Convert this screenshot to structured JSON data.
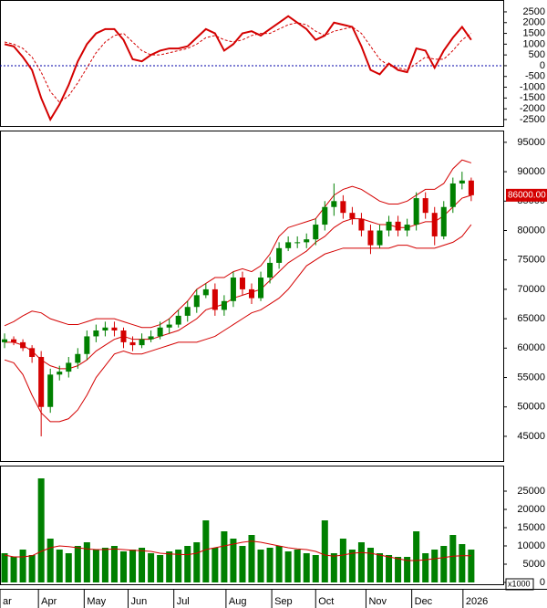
{
  "chart_data": [
    {
      "type": "line",
      "ylim": [
        -2800,
        3050
      ],
      "yticks": [
        2500,
        2000,
        1500,
        1000,
        500,
        0,
        -500,
        -1000,
        -1500,
        -2000,
        -2500
      ],
      "xlim": [
        0,
        55
      ],
      "zero_line_color": "#0000aa",
      "series": [
        {
          "color": "#d40000",
          "style": "solid",
          "values": [
            1000,
            900,
            400,
            -200,
            -1500,
            -2500,
            -1800,
            -900,
            200,
            1000,
            1500,
            1700,
            1700,
            1200,
            300,
            200,
            500,
            700,
            800,
            800,
            900,
            1300,
            1700,
            1500,
            700,
            1000,
            1500,
            1600,
            1400,
            1700,
            2000,
            2300,
            2000,
            1700,
            1200,
            1400,
            2000,
            1900,
            1800,
            900,
            -200,
            -400,
            100,
            -200,
            -300,
            800,
            700,
            -100,
            700,
            1300,
            1800,
            1200
          ]
        },
        {
          "color": "#d40000",
          "style": "dashed",
          "values": [
            1100,
            1000,
            800,
            400,
            -300,
            -1200,
            -1700,
            -1400,
            -800,
            -100,
            600,
            1100,
            1400,
            1500,
            1100,
            700,
            500,
            500,
            600,
            700,
            800,
            1000,
            1300,
            1400,
            1200,
            1100,
            1200,
            1400,
            1500,
            1500,
            1700,
            1900,
            2000,
            1900,
            1600,
            1400,
            1600,
            1700,
            1800,
            1500,
            900,
            300,
            0,
            -100,
            -200,
            100,
            400,
            300,
            300,
            700,
            1200,
            1500
          ]
        }
      ]
    },
    {
      "type": "candlestick",
      "ylim": [
        40800,
        97000
      ],
      "yticks": [
        95000,
        90000,
        85000,
        80000,
        75000,
        70000,
        65000,
        60000,
        55000,
        50000,
        45000
      ],
      "xlim": [
        0,
        55
      ],
      "up_color": "#008000",
      "down_color": "#d40000",
      "open": [
        61000,
        61500,
        61000,
        60000,
        58500,
        50000,
        55500,
        56000,
        57500,
        59000,
        62000,
        63000,
        63500,
        63000,
        61000,
        60500,
        61500,
        62000,
        63500,
        64000,
        65500,
        67000,
        69000,
        70000,
        66500,
        68000,
        72000,
        70000,
        68500,
        72000,
        74500,
        77000,
        78000,
        78000,
        78500,
        81000,
        84000,
        85000,
        83000,
        82000,
        80000,
        77500,
        80000,
        81500,
        80000,
        81000,
        85500,
        83000,
        79000,
        84000,
        88000,
        88500
      ],
      "high": [
        62500,
        62000,
        61500,
        60500,
        59500,
        56500,
        57000,
        58500,
        60000,
        63000,
        64000,
        64500,
        64500,
        63500,
        62000,
        62500,
        63000,
        64500,
        65000,
        66500,
        68000,
        70000,
        71000,
        71000,
        69000,
        73000,
        73000,
        71000,
        73000,
        75500,
        78000,
        79000,
        79000,
        79500,
        82000,
        85000,
        88000,
        86000,
        84000,
        83000,
        81000,
        81000,
        82500,
        82500,
        82000,
        86500,
        86500,
        84000,
        85000,
        89000,
        90000,
        89000
      ],
      "low": [
        60000,
        60500,
        59500,
        57500,
        45000,
        49000,
        54500,
        55000,
        56500,
        58000,
        61000,
        62000,
        62000,
        60000,
        59500,
        60000,
        61000,
        61500,
        62500,
        63500,
        64500,
        66000,
        68500,
        65500,
        65500,
        67000,
        69000,
        67500,
        68000,
        71000,
        73500,
        76500,
        77000,
        77000,
        77500,
        80000,
        82500,
        82000,
        81000,
        79000,
        76000,
        77000,
        79000,
        79000,
        79000,
        80000,
        82000,
        77500,
        78500,
        83000,
        87000,
        85000
      ],
      "close": [
        61500,
        61000,
        60000,
        58500,
        50000,
        55500,
        56000,
        57500,
        59000,
        62000,
        63000,
        63500,
        63000,
        61000,
        60500,
        61500,
        62000,
        63500,
        64000,
        65500,
        67000,
        69000,
        70000,
        66500,
        68000,
        72000,
        70000,
        68500,
        72000,
        74500,
        77000,
        78000,
        78000,
        78500,
        81000,
        84000,
        85000,
        83000,
        82000,
        80000,
        77500,
        80000,
        81500,
        80000,
        81000,
        85500,
        83000,
        79000,
        84000,
        88000,
        88500,
        86000
      ],
      "series": [
        {
          "color": "#d40000",
          "values": [
            63800,
            64500,
            65500,
            66300,
            66000,
            65000,
            64500,
            64000,
            64000,
            64500,
            65000,
            65000,
            65000,
            64500,
            64000,
            63500,
            63500,
            64000,
            65000,
            66500,
            68000,
            70000,
            71000,
            72000,
            72000,
            73000,
            73500,
            73000,
            74000,
            76000,
            79000,
            80500,
            81000,
            81500,
            82000,
            84000,
            86000,
            87000,
            87500,
            87000,
            86000,
            85000,
            84500,
            84500,
            85000,
            86000,
            87000,
            87000,
            88000,
            90500,
            92000,
            91500
          ]
        },
        {
          "color": "#d40000",
          "values": [
            61000,
            61000,
            60500,
            59500,
            58000,
            57000,
            56500,
            56500,
            57000,
            58000,
            59500,
            60500,
            61500,
            62000,
            61500,
            61500,
            61500,
            62000,
            62500,
            63000,
            64000,
            65000,
            66500,
            67000,
            67500,
            68500,
            69000,
            69500,
            70000,
            71500,
            73000,
            74500,
            75500,
            76500,
            78000,
            79000,
            80500,
            81500,
            82000,
            82000,
            81500,
            81000,
            81000,
            80500,
            80500,
            81000,
            81500,
            81500,
            82500,
            84000,
            85500,
            86000
          ]
        },
        {
          "color": "#d40000",
          "values": [
            58000,
            57500,
            55500,
            52000,
            49000,
            47500,
            47500,
            48000,
            49500,
            52000,
            55000,
            57000,
            59000,
            59500,
            59000,
            59000,
            59500,
            60000,
            60500,
            61000,
            61000,
            61000,
            61500,
            62000,
            63000,
            64000,
            65000,
            66000,
            66500,
            67500,
            68500,
            70000,
            72000,
            74000,
            75000,
            76000,
            76500,
            77000,
            77000,
            77000,
            77000,
            77000,
            77000,
            77500,
            77500,
            77000,
            77000,
            77000,
            77500,
            78000,
            79000,
            81000
          ]
        }
      ],
      "last_label": {
        "value": 86000,
        "label": "86000.00"
      }
    },
    {
      "type": "bar",
      "ylim": [
        -500,
        32000
      ],
      "yticks": [
        25000,
        20000,
        15000,
        10000,
        5000,
        0
      ],
      "unit_label": "x1000",
      "color": "#008000",
      "xlim": [
        0,
        55
      ],
      "values": [
        8000,
        7000,
        9000,
        7500,
        28500,
        12000,
        9000,
        8000,
        10000,
        11000,
        9000,
        9500,
        10000,
        8500,
        9000,
        9500,
        8000,
        7500,
        8500,
        9000,
        10000,
        11000,
        17000,
        9500,
        14000,
        12000,
        10000,
        13000,
        9000,
        9500,
        10000,
        8500,
        9000,
        8000,
        7500,
        17000,
        8000,
        12000,
        9000,
        11000,
        9500,
        8000,
        7500,
        7000,
        7000,
        14000,
        8000,
        9000,
        10000,
        13000,
        10500,
        9000
      ],
      "series": [
        {
          "color": "#d40000",
          "values": [
            7500,
            7000,
            7000,
            7300,
            8500,
            9500,
            10000,
            9800,
            9500,
            9200,
            9000,
            9000,
            9200,
            9000,
            8800,
            8700,
            8500,
            8000,
            7800,
            7700,
            7600,
            8000,
            9000,
            9500,
            10000,
            10500,
            11000,
            11300,
            11000,
            10500,
            10000,
            9500,
            9200,
            9000,
            8500,
            7500,
            7200,
            7500,
            8000,
            8200,
            8000,
            7500,
            7000,
            6500,
            6000,
            6000,
            6200,
            6500,
            6800,
            7200,
            7300,
            7300
          ]
        }
      ],
      "xticks": [
        {
          "value": 0,
          "label": "ar"
        },
        {
          "value": 4.2,
          "label": "Apr"
        },
        {
          "value": 9.2,
          "label": "May"
        },
        {
          "value": 14,
          "label": "Jun"
        },
        {
          "value": 19,
          "label": "Jul"
        },
        {
          "value": 24.7,
          "label": "Aug"
        },
        {
          "value": 29.7,
          "label": "Sep"
        },
        {
          "value": 34.5,
          "label": "Oct"
        },
        {
          "value": 40,
          "label": "Nov"
        },
        {
          "value": 45,
          "label": "Dec"
        },
        {
          "value": 50.6,
          "label": "2026"
        }
      ]
    }
  ]
}
